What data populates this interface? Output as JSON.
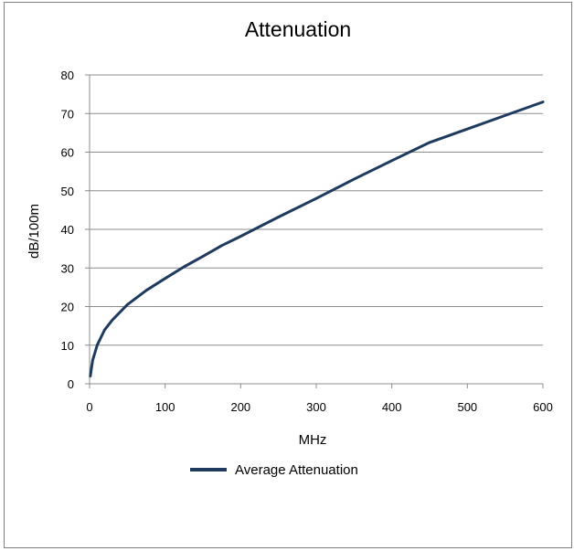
{
  "chart_data": {
    "type": "line",
    "title": "Attenuation",
    "xlabel": "MHz",
    "ylabel": "dB/100m",
    "xlim": [
      0,
      600
    ],
    "ylim": [
      0,
      80
    ],
    "xticks": [
      0,
      100,
      200,
      300,
      400,
      500,
      600
    ],
    "yticks": [
      0,
      10,
      20,
      30,
      40,
      50,
      60,
      70,
      80
    ],
    "grid": "horizontal",
    "legend_position": "bottom",
    "series": [
      {
        "name": "Average Attenuation",
        "color": "#1f3a5f",
        "x": [
          1,
          4,
          10,
          20,
          30,
          50,
          75,
          100,
          125,
          150,
          175,
          200,
          250,
          300,
          350,
          400,
          450,
          500,
          550,
          600
        ],
        "y": [
          2,
          6,
          10,
          14,
          16.5,
          20.5,
          24.2,
          27.3,
          30.3,
          33,
          35.8,
          38.2,
          43.2,
          48,
          53,
          57.8,
          62.5,
          66,
          69.5,
          73
        ]
      }
    ]
  }
}
